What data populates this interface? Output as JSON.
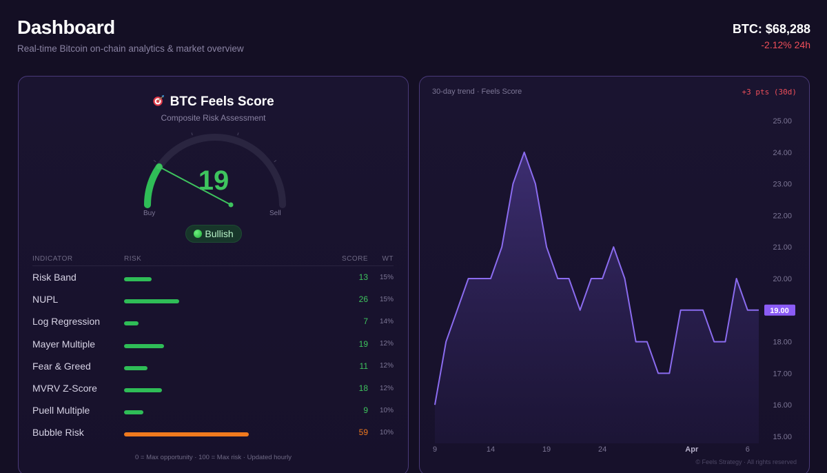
{
  "header": {
    "title": "Dashboard",
    "subtitle": "Real-time Bitcoin on-chain analytics & market overview",
    "btc_price": "BTC: $68,288",
    "btc_change": "-2.12% 24h"
  },
  "score_card": {
    "title": "BTC Feels Score",
    "title_icon": "target-icon",
    "subtitle": "Composite Risk Assessment",
    "value": "19",
    "gauge_fraction": 0.19,
    "gauge_left_label": "Buy",
    "gauge_right_label": "Sell",
    "status_label": "Bullish",
    "colors": {
      "bullish": "#3ec45e",
      "risk_high": "#f07a1e",
      "accent": "#8b5cf6"
    }
  },
  "indicators": {
    "headers": {
      "indicator": "INDICATOR",
      "risk": "RISK",
      "score": "SCORE",
      "weight": "WT"
    },
    "rows": [
      {
        "name": "Risk Band",
        "score": "13",
        "weight": "15%",
        "risk": 13
      },
      {
        "name": "NUPL",
        "score": "26",
        "weight": "15%",
        "risk": 26
      },
      {
        "name": "Log Regression",
        "score": "7",
        "weight": "14%",
        "risk": 7
      },
      {
        "name": "Mayer Multiple",
        "score": "19",
        "weight": "12%",
        "risk": 19
      },
      {
        "name": "Fear & Greed",
        "score": "11",
        "weight": "12%",
        "risk": 11
      },
      {
        "name": "MVRV Z-Score",
        "score": "18",
        "weight": "12%",
        "risk": 18
      },
      {
        "name": "Puell Multiple",
        "score": "9",
        "weight": "10%",
        "risk": 9
      },
      {
        "name": "Bubble Risk",
        "score": "59",
        "weight": "10%",
        "risk": 59
      }
    ],
    "footnote": "0 = Max opportunity · 100 = Max risk · Updated hourly"
  },
  "trend": {
    "label": "30-day trend · Feels Score",
    "change": "+3 pts (30d)",
    "watermark": "© Feels Strategy · All rights reserved"
  },
  "chart_data": {
    "type": "area",
    "title": "",
    "xlabel": "",
    "ylabel": "",
    "x": [
      9,
      10,
      11,
      12,
      13,
      14,
      15,
      16,
      17,
      18,
      19,
      20,
      21,
      22,
      23,
      24,
      25,
      26,
      27,
      28,
      29,
      30,
      31,
      1,
      2,
      3,
      4,
      5,
      6,
      7
    ],
    "values": [
      16,
      18,
      19,
      20,
      20,
      20,
      21,
      23,
      24,
      23,
      21,
      20,
      20,
      19,
      20,
      20,
      21,
      20,
      18,
      18,
      17,
      17,
      19,
      19,
      19,
      18,
      18,
      20,
      19,
      19
    ],
    "ylim": [
      15,
      25
    ],
    "yticks": [
      "15.00",
      "16.00",
      "17.00",
      "18.00",
      "19.00",
      "20.00",
      "21.00",
      "22.00",
      "23.00",
      "24.00",
      "25.00"
    ],
    "xticks": [
      "9",
      "14",
      "19",
      "24",
      "Apr",
      "6"
    ],
    "xtick_index": [
      0,
      5,
      10,
      15,
      23,
      28
    ],
    "current_label": "19.00",
    "line_color": "#8b6cf0",
    "grid": false
  }
}
